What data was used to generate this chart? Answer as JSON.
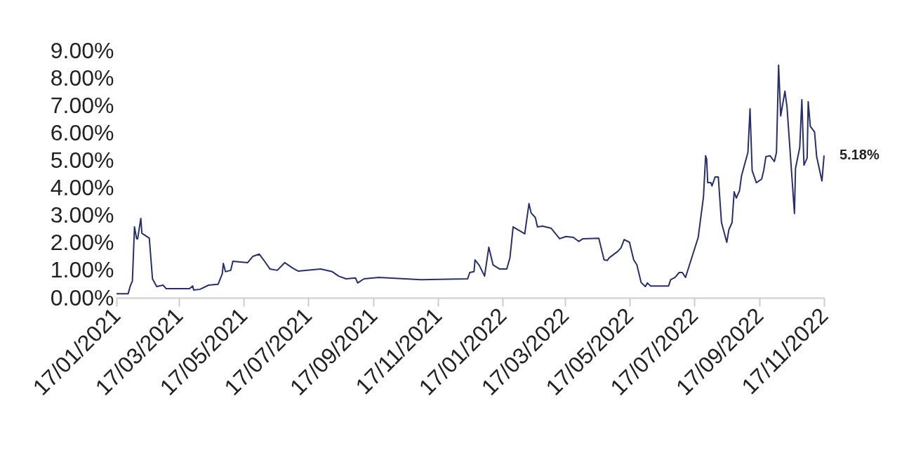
{
  "chart_data": {
    "type": "line",
    "x": [
      "2021-01-17",
      "2021-01-28",
      "2021-01-30",
      "2021-02-01",
      "2021-02-03",
      "2021-02-05",
      "2021-02-06",
      "2021-02-09",
      "2021-02-10",
      "2021-02-17",
      "2021-02-20",
      "2021-02-24",
      "2021-03-02",
      "2021-03-05",
      "2021-03-20",
      "2021-03-27",
      "2021-03-30",
      "2021-03-31",
      "2021-04-06",
      "2021-04-14",
      "2021-04-23",
      "2021-04-27",
      "2021-04-28",
      "2021-04-30",
      "2021-05-05",
      "2021-05-07",
      "2021-05-21",
      "2021-05-26",
      "2021-06-01",
      "2021-06-06",
      "2021-06-11",
      "2021-06-18",
      "2021-06-25",
      "2021-07-03",
      "2021-07-08",
      "2021-07-29",
      "2021-08-09",
      "2021-08-15",
      "2021-08-22",
      "2021-08-31",
      "2021-09-02",
      "2021-09-08",
      "2021-09-22",
      "2021-11-01",
      "2021-12-15",
      "2021-12-17",
      "2021-12-21",
      "2021-12-22",
      "2021-12-26",
      "2021-12-31",
      "2022-01-04",
      "2022-01-08",
      "2022-01-14",
      "2022-01-21",
      "2022-01-24",
      "2022-01-27",
      "2022-02-07",
      "2022-02-11",
      "2022-02-13",
      "2022-02-17",
      "2022-02-19",
      "2022-02-24",
      "2022-03-04",
      "2022-03-12",
      "2022-03-18",
      "2022-03-25",
      "2022-03-30",
      "2022-04-03",
      "2022-04-18",
      "2022-04-23",
      "2022-04-26",
      "2022-04-28",
      "2022-05-06",
      "2022-05-09",
      "2022-05-12",
      "2022-05-17",
      "2022-05-21",
      "2022-05-24",
      "2022-05-28",
      "2022-06-01",
      "2022-06-03",
      "2022-06-06",
      "2022-06-23",
      "2022-06-25",
      "2022-06-29",
      "2022-07-03",
      "2022-07-06",
      "2022-07-09",
      "2022-07-21",
      "2022-07-26",
      "2022-07-28",
      "2022-07-29",
      "2022-07-30",
      "2022-08-02",
      "2022-08-03",
      "2022-08-06",
      "2022-08-09",
      "2022-08-12",
      "2022-08-17",
      "2022-08-19",
      "2022-08-22",
      "2022-08-24",
      "2022-08-26",
      "2022-08-29",
      "2022-08-31",
      "2022-09-06",
      "2022-09-08",
      "2022-09-10",
      "2022-09-14",
      "2022-09-19",
      "2022-09-21",
      "2022-09-23",
      "2022-09-27",
      "2022-10-01",
      "2022-10-03",
      "2022-10-05",
      "2022-10-07",
      "2022-10-11",
      "2022-10-13",
      "2022-10-20",
      "2022-10-21",
      "2022-10-25",
      "2022-10-27",
      "2022-10-29",
      "2022-11-01",
      "2022-11-02",
      "2022-11-04",
      "2022-11-08",
      "2022-11-10",
      "2022-11-15",
      "2022-11-17"
    ],
    "series": [
      {
        "color": "#27306b",
        "values": [
          0.15,
          0.15,
          0.43,
          0.61,
          2.58,
          2.15,
          2.15,
          2.89,
          2.35,
          2.17,
          0.69,
          0.41,
          0.46,
          0.33,
          0.33,
          0.33,
          0.43,
          0.28,
          0.31,
          0.46,
          0.49,
          0.87,
          1.25,
          0.95,
          1.0,
          1.33,
          1.28,
          1.51,
          1.59,
          1.33,
          1.05,
          1.0,
          1.28,
          1.07,
          0.97,
          1.05,
          0.95,
          0.79,
          0.69,
          0.72,
          0.54,
          0.69,
          0.74,
          0.66,
          0.69,
          0.92,
          0.95,
          1.38,
          1.18,
          0.79,
          1.84,
          1.2,
          1.05,
          1.05,
          1.46,
          2.58,
          2.33,
          3.43,
          3.09,
          2.92,
          2.58,
          2.61,
          2.53,
          2.15,
          2.23,
          2.2,
          2.05,
          2.15,
          2.17,
          1.38,
          1.36,
          1.46,
          1.69,
          1.82,
          2.12,
          2.02,
          1.38,
          1.2,
          0.56,
          0.41,
          0.54,
          0.43,
          0.43,
          0.66,
          0.74,
          0.92,
          0.92,
          0.74,
          2.2,
          3.68,
          5.17,
          5.04,
          4.19,
          4.19,
          4.07,
          4.4,
          4.4,
          2.74,
          2.02,
          2.48,
          2.74,
          3.86,
          3.63,
          3.89,
          4.45,
          5.29,
          6.88,
          4.63,
          4.19,
          4.32,
          4.65,
          5.14,
          5.17,
          4.96,
          5.29,
          8.47,
          6.62,
          7.52,
          6.93,
          3.07,
          4.71,
          5.47,
          7.21,
          4.83,
          5.09,
          7.14,
          6.24,
          6.04,
          5.14,
          4.25,
          5.18
        ]
      }
    ],
    "xlim": [
      "2021-01-17",
      "2022-11-17"
    ],
    "xticks": [
      {
        "value": "2021-01-17",
        "label": "17/01/2021"
      },
      {
        "value": "2021-03-17",
        "label": "17/03/2021"
      },
      {
        "value": "2021-05-17",
        "label": "17/05/2021"
      },
      {
        "value": "2021-07-17",
        "label": "17/07/2021"
      },
      {
        "value": "2021-09-17",
        "label": "17/09/2021"
      },
      {
        "value": "2021-11-17",
        "label": "17/11/2021"
      },
      {
        "value": "2022-01-17",
        "label": "17/01/2022"
      },
      {
        "value": "2022-03-17",
        "label": "17/03/2022"
      },
      {
        "value": "2022-05-17",
        "label": "17/05/2022"
      },
      {
        "value": "2022-07-17",
        "label": "17/07/2022"
      },
      {
        "value": "2022-09-17",
        "label": "17/09/2022"
      },
      {
        "value": "2022-11-17",
        "label": "17/11/2022"
      }
    ],
    "ylim": [
      0,
      9
    ],
    "yticks": [
      {
        "value": 0,
        "label": "0.00%"
      },
      {
        "value": 1,
        "label": "1.00%"
      },
      {
        "value": 2,
        "label": "2.00%"
      },
      {
        "value": 3,
        "label": "3.00%"
      },
      {
        "value": 4,
        "label": "4.00%"
      },
      {
        "value": 5,
        "label": "5.00%"
      },
      {
        "value": 6,
        "label": "6.00%"
      },
      {
        "value": 7,
        "label": "7.00%"
      },
      {
        "value": 8,
        "label": "8.00%"
      },
      {
        "value": 9,
        "label": "9.00%"
      }
    ],
    "annotations": [
      {
        "text": "5.18%",
        "x": "2022-11-17",
        "y": 5.18
      }
    ],
    "grid": false,
    "marker": "none",
    "line_style": "solid"
  }
}
